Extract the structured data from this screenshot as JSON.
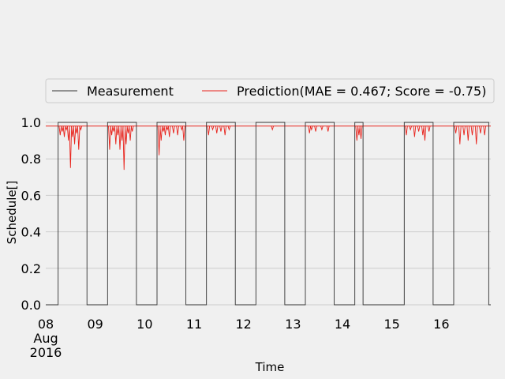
{
  "chart_data": {
    "type": "line",
    "xlabel": "Time",
    "ylabel": "Schedule[]",
    "ylim": [
      0.0,
      1.0
    ],
    "yticks": [
      "0.0",
      "0.2",
      "0.4",
      "0.6",
      "0.8",
      "1.0"
    ],
    "xlim": [
      "2016-08-08 00:00",
      "2016-08-17 00:00"
    ],
    "xticks": [
      {
        "date": "2016-08-08",
        "lines": [
          "08",
          "Aug",
          "2016"
        ]
      },
      {
        "date": "2016-08-09",
        "lines": [
          "09"
        ]
      },
      {
        "date": "2016-08-10",
        "lines": [
          "10"
        ]
      },
      {
        "date": "2016-08-11",
        "lines": [
          "11"
        ]
      },
      {
        "date": "2016-08-12",
        "lines": [
          "12"
        ]
      },
      {
        "date": "2016-08-13",
        "lines": [
          "13"
        ]
      },
      {
        "date": "2016-08-14",
        "lines": [
          "14"
        ]
      },
      {
        "date": "2016-08-15",
        "lines": [
          "15"
        ]
      },
      {
        "date": "2016-08-16",
        "lines": [
          "16"
        ]
      }
    ],
    "grid": true,
    "legend_position": "top",
    "series": [
      {
        "name": "Measurement",
        "color": "#333333",
        "step_points": [
          [
            "2016-08-08 00:00",
            0
          ],
          [
            "2016-08-08 06:00",
            0
          ],
          [
            "2016-08-08 06:00",
            1
          ],
          [
            "2016-08-08 20:00",
            1
          ],
          [
            "2016-08-08 20:00",
            0
          ],
          [
            "2016-08-09 06:00",
            0
          ],
          [
            "2016-08-09 06:00",
            1
          ],
          [
            "2016-08-09 20:00",
            1
          ],
          [
            "2016-08-09 20:00",
            0
          ],
          [
            "2016-08-10 06:00",
            0
          ],
          [
            "2016-08-10 06:00",
            1
          ],
          [
            "2016-08-10 20:00",
            1
          ],
          [
            "2016-08-10 20:00",
            0
          ],
          [
            "2016-08-11 06:00",
            0
          ],
          [
            "2016-08-11 06:00",
            1
          ],
          [
            "2016-08-11 20:00",
            1
          ],
          [
            "2016-08-11 20:00",
            0
          ],
          [
            "2016-08-12 06:00",
            0
          ],
          [
            "2016-08-12 06:00",
            1
          ],
          [
            "2016-08-12 20:00",
            1
          ],
          [
            "2016-08-12 20:00",
            0
          ],
          [
            "2016-08-13 06:00",
            0
          ],
          [
            "2016-08-13 06:00",
            1
          ],
          [
            "2016-08-13 20:00",
            1
          ],
          [
            "2016-08-13 20:00",
            0
          ],
          [
            "2016-08-14 06:00",
            0
          ],
          [
            "2016-08-14 06:00",
            1
          ],
          [
            "2016-08-14 10:00",
            1
          ],
          [
            "2016-08-14 10:00",
            0
          ],
          [
            "2016-08-15 06:00",
            0
          ],
          [
            "2016-08-15 06:00",
            1
          ],
          [
            "2016-08-15 20:00",
            1
          ],
          [
            "2016-08-15 20:00",
            0
          ],
          [
            "2016-08-16 06:00",
            0
          ],
          [
            "2016-08-16 06:00",
            1
          ],
          [
            "2016-08-16 23:00",
            1
          ],
          [
            "2016-08-16 23:00",
            0
          ],
          [
            "2016-08-17 00:00",
            0
          ]
        ]
      },
      {
        "name": "Prediction(MAE = 0.467; Score = -0.75)",
        "color": "#e8221b",
        "baseline": 0.98,
        "dips": [
          [
            "2016-08-08 07:00",
            0.93
          ],
          [
            "2016-08-08 08:00",
            0.95
          ],
          [
            "2016-08-08 09:00",
            0.92
          ],
          [
            "2016-08-08 10:00",
            0.96
          ],
          [
            "2016-08-08 11:00",
            0.9
          ],
          [
            "2016-08-08 12:00",
            0.75
          ],
          [
            "2016-08-08 13:00",
            0.92
          ],
          [
            "2016-08-08 14:00",
            0.88
          ],
          [
            "2016-08-08 15:00",
            0.94
          ],
          [
            "2016-08-08 16:00",
            0.85
          ],
          [
            "2016-08-08 17:00",
            0.96
          ],
          [
            "2016-08-09 07:00",
            0.85
          ],
          [
            "2016-08-09 08:00",
            0.93
          ],
          [
            "2016-08-09 09:00",
            0.95
          ],
          [
            "2016-08-09 10:00",
            0.88
          ],
          [
            "2016-08-09 11:00",
            0.93
          ],
          [
            "2016-08-09 12:00",
            0.85
          ],
          [
            "2016-08-09 13:00",
            0.9
          ],
          [
            "2016-08-09 14:00",
            0.74
          ],
          [
            "2016-08-09 15:00",
            0.88
          ],
          [
            "2016-08-09 16:00",
            0.94
          ],
          [
            "2016-08-09 17:00",
            0.9
          ],
          [
            "2016-08-09 18:00",
            0.95
          ],
          [
            "2016-08-10 07:00",
            0.82
          ],
          [
            "2016-08-10 08:00",
            0.9
          ],
          [
            "2016-08-10 09:00",
            0.95
          ],
          [
            "2016-08-10 10:00",
            0.93
          ],
          [
            "2016-08-10 11:00",
            0.96
          ],
          [
            "2016-08-10 12:00",
            0.92
          ],
          [
            "2016-08-10 14:00",
            0.94
          ],
          [
            "2016-08-10 16:00",
            0.93
          ],
          [
            "2016-08-10 18:00",
            0.96
          ],
          [
            "2016-08-10 19:00",
            0.9
          ],
          [
            "2016-08-11 07:00",
            0.93
          ],
          [
            "2016-08-11 09:00",
            0.96
          ],
          [
            "2016-08-11 11:00",
            0.94
          ],
          [
            "2016-08-11 13:00",
            0.95
          ],
          [
            "2016-08-11 15:00",
            0.93
          ],
          [
            "2016-08-11 17:00",
            0.96
          ],
          [
            "2016-08-12 14:00",
            0.96
          ],
          [
            "2016-08-13 08:00",
            0.94
          ],
          [
            "2016-08-13 09:00",
            0.96
          ],
          [
            "2016-08-13 11:00",
            0.95
          ],
          [
            "2016-08-13 14:00",
            0.96
          ],
          [
            "2016-08-13 17:00",
            0.95
          ],
          [
            "2016-08-14 07:00",
            0.9
          ],
          [
            "2016-08-14 08:00",
            0.93
          ],
          [
            "2016-08-14 09:00",
            0.91
          ],
          [
            "2016-08-15 07:00",
            0.93
          ],
          [
            "2016-08-15 09:00",
            0.96
          ],
          [
            "2016-08-15 11:00",
            0.92
          ],
          [
            "2016-08-15 13:00",
            0.95
          ],
          [
            "2016-08-15 15:00",
            0.93
          ],
          [
            "2016-08-15 16:00",
            0.9
          ],
          [
            "2016-08-15 18:00",
            0.95
          ],
          [
            "2016-08-16 07:00",
            0.94
          ],
          [
            "2016-08-16 09:00",
            0.88
          ],
          [
            "2016-08-16 11:00",
            0.93
          ],
          [
            "2016-08-16 13:00",
            0.9
          ],
          [
            "2016-08-16 15:00",
            0.93
          ],
          [
            "2016-08-16 17:00",
            0.88
          ],
          [
            "2016-08-16 19:00",
            0.94
          ],
          [
            "2016-08-16 21:00",
            0.93
          ]
        ]
      }
    ]
  }
}
